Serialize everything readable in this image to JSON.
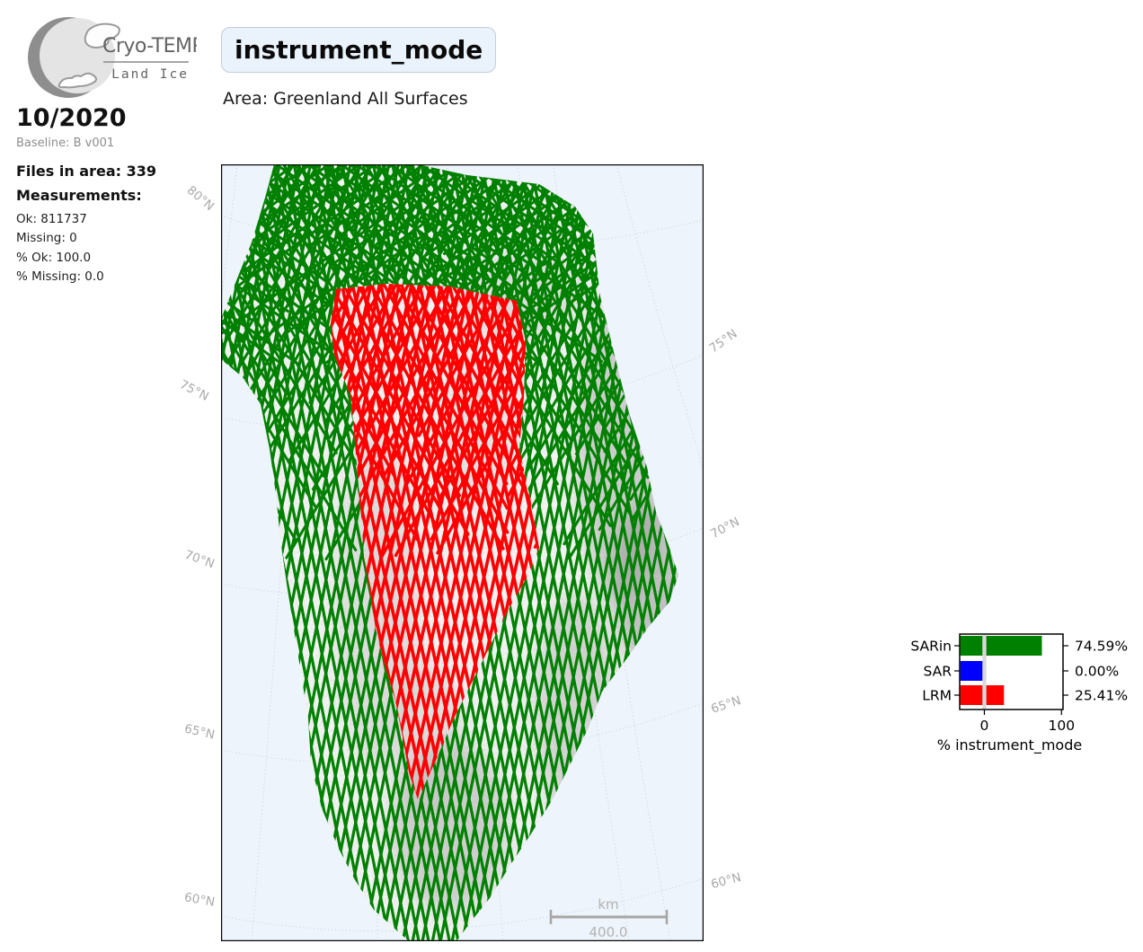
{
  "logo": {
    "brand": "Cryo-TEMPO",
    "product": "Land Ice"
  },
  "sidebar": {
    "period": "10/2020",
    "baseline": "Baseline: B v001",
    "files_line": "Files in area: 339",
    "measurements_heading": "Measurements:",
    "stats": [
      "Ok: 811737",
      "Missing: 0",
      "% Ok: 100.0",
      "% Missing: 0.0"
    ]
  },
  "header": {
    "title": "instrument_mode",
    "area": "Area: Greenland All Surfaces"
  },
  "map": {
    "latitude_labels_left": [
      "80°N",
      "75°N",
      "70°N",
      "65°N",
      "60°N"
    ],
    "latitude_labels_right": [
      "75°N",
      "70°N",
      "65°N",
      "60°N"
    ],
    "scalebar": {
      "unit": "km",
      "value": "400.0"
    },
    "colors": {
      "sarin_track": "#008000",
      "lrm_track": "#ff0000",
      "ocean": "#edf4fb",
      "land": "#f6f6f6",
      "graticule": "#c9cfd8",
      "scalebar": "#a6a6a6",
      "scalebar_text": "#b3b3b3",
      "border": "#000000"
    }
  },
  "chart_data": {
    "type": "bar",
    "orientation": "horizontal",
    "categories": [
      "SARin",
      "SAR",
      "LRM"
    ],
    "values": [
      74.59,
      0.0,
      25.41
    ],
    "value_labels": [
      "74.59%",
      "0.00%",
      "25.41%"
    ],
    "colors": [
      "#008000",
      "#0000ff",
      "#ff0000"
    ],
    "xlabel": "% instrument_mode",
    "xticks": [
      0,
      100
    ],
    "xtick_labels": [
      "0",
      "100"
    ],
    "xlim": [
      -32,
      102
    ],
    "zero_line_color": "#d9d9d9",
    "grid": false
  }
}
